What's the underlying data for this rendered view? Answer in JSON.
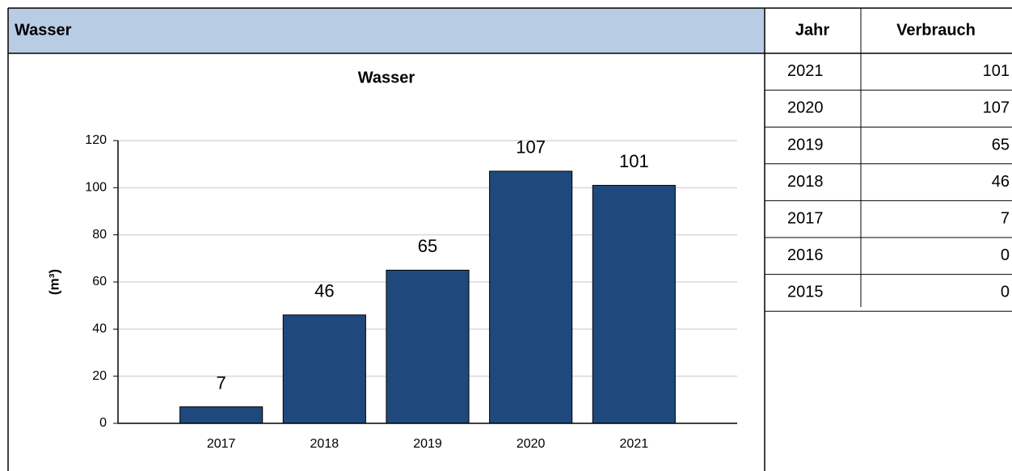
{
  "panel": {
    "title": "Wasser"
  },
  "chart_data": {
    "type": "bar",
    "title": "Wasser",
    "y_label": "(m³)",
    "categories": [
      "2017",
      "2018",
      "2019",
      "2020",
      "2021"
    ],
    "values": [
      7,
      46,
      65,
      107,
      101
    ],
    "color": "#1f497d",
    "ylim": [
      0,
      120
    ],
    "yticks": [
      0,
      20,
      40,
      60,
      80,
      100,
      120
    ],
    "grid": true
  },
  "table": {
    "header": [
      "Jahr",
      "Verbrauch"
    ],
    "rows": [
      [
        "2021",
        101
      ],
      [
        "2020",
        107
      ],
      [
        "2019",
        65
      ],
      [
        "2018",
        46
      ],
      [
        "2017",
        7
      ],
      [
        "2016",
        0
      ],
      [
        "2015",
        0
      ]
    ]
  }
}
